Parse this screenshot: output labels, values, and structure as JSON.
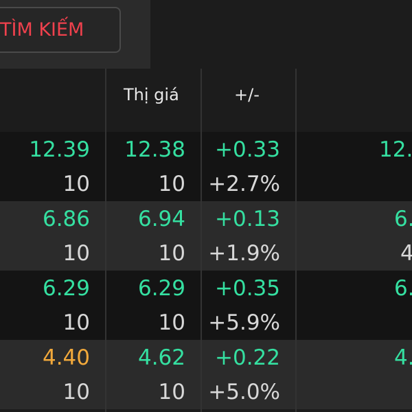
{
  "search": {
    "label": "TÌM KIẾM"
  },
  "headers": {
    "market_price": "Thị giá",
    "change": "+/-"
  },
  "colors": {
    "up": "#35e0a1",
    "ref": "#f2a93b",
    "search": "#f0414d"
  },
  "rows": [
    {
      "price": "12.39",
      "price_color": "green",
      "volume": "10",
      "market_price": "12.38",
      "market_volume": "10",
      "change": "+0.33",
      "change_pct": "+2.7%",
      "right_top": "12.",
      "right_bottom": ""
    },
    {
      "price": "6.86",
      "price_color": "green",
      "volume": "10",
      "market_price": "6.94",
      "market_volume": "10",
      "change": "+0.13",
      "change_pct": "+1.9%",
      "right_top": "6.",
      "right_bottom": "4"
    },
    {
      "price": "6.29",
      "price_color": "green",
      "volume": "10",
      "market_price": "6.29",
      "market_volume": "10",
      "change": "+0.35",
      "change_pct": "+5.9%",
      "right_top": "6.",
      "right_bottom": ""
    },
    {
      "price": "4.40",
      "price_color": "orange",
      "volume": "10",
      "market_price": "4.62",
      "market_volume": "10",
      "change": "+0.22",
      "change_pct": "+5.0%",
      "right_top": "4.",
      "right_bottom": ""
    }
  ]
}
